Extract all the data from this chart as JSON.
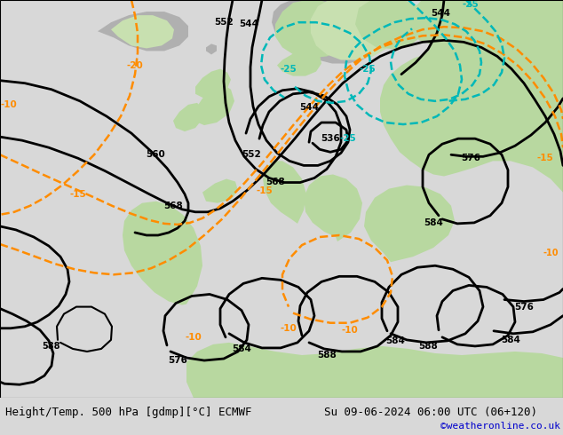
{
  "title_left": "Height/Temp. 500 hPa [gdmp][°C] ECMWF",
  "title_right": "Su 09-06-2024 06:00 UTC (06+120)",
  "credit": "©weatheronline.co.uk",
  "bg_color": "#d8d8d8",
  "land_green": "#b8d8a0",
  "land_green2": "#c8e0b0",
  "land_gray": "#b0b0b0",
  "sea_color": "#d8d8d8",
  "fig_width": 6.34,
  "fig_height": 4.9,
  "dpi": 100,
  "bottom_bar_color": "#ffffff",
  "title_fontsize": 9.0,
  "credit_color": "#0000cc",
  "credit_fontsize": 8
}
